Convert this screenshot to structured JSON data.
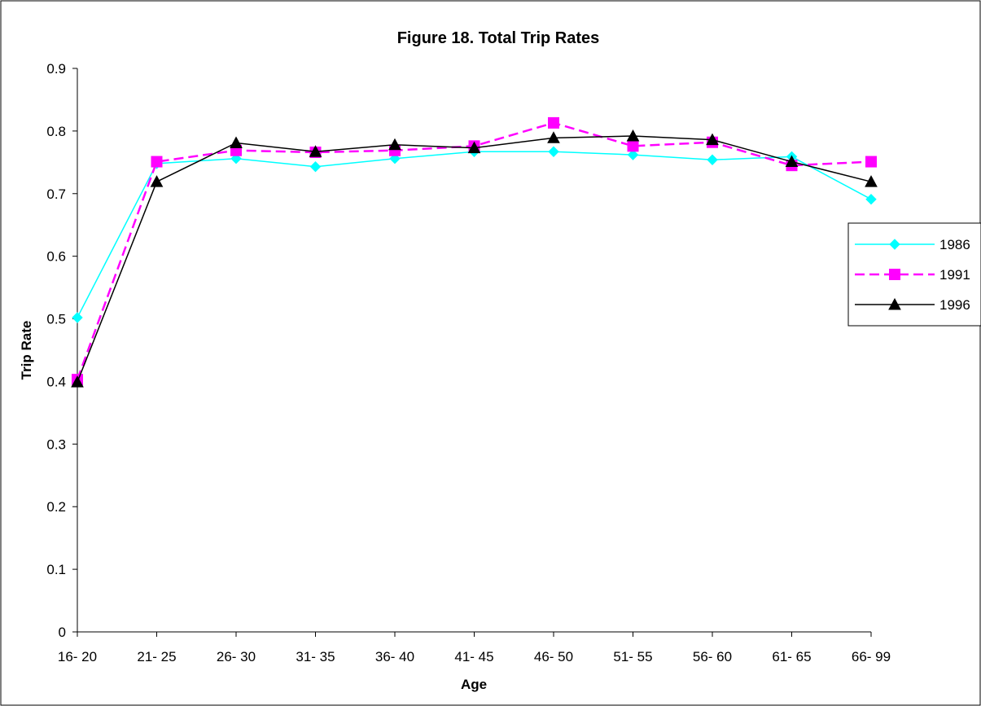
{
  "chart_data": {
    "type": "line",
    "title": "Figure 18. Total Trip Rates",
    "xlabel": "Age",
    "ylabel": "Trip Rate",
    "categories": [
      "16- 20",
      "21- 25",
      "26- 30",
      "31- 35",
      "36- 40",
      "41- 45",
      "46- 50",
      "51- 55",
      "56- 60",
      "61- 65",
      "66- 99"
    ],
    "y_ticks": [
      "0",
      "0.1",
      "0.2",
      "0.3",
      "0.4",
      "0.5",
      "0.6",
      "0.7",
      "0.8",
      "0.9"
    ],
    "ylim": [
      0,
      0.9
    ],
    "grid": false,
    "legend_position": "right",
    "series": [
      {
        "name": "1986",
        "color": "#00ffff",
        "marker": "diamond",
        "dash": "solid",
        "values": [
          0.502,
          0.748,
          0.756,
          0.743,
          0.756,
          0.767,
          0.767,
          0.762,
          0.754,
          0.759,
          0.691
        ]
      },
      {
        "name": "1991",
        "color": "#ff00ff",
        "marker": "square",
        "dash": "dashed",
        "values": [
          0.403,
          0.751,
          0.769,
          0.766,
          0.769,
          0.776,
          0.813,
          0.776,
          0.782,
          0.745,
          0.751
        ]
      },
      {
        "name": "1996",
        "color": "#000000",
        "marker": "triangle",
        "dash": "solid",
        "values": [
          0.399,
          0.719,
          0.781,
          0.767,
          0.778,
          0.773,
          0.789,
          0.792,
          0.786,
          0.751,
          0.719
        ]
      }
    ]
  }
}
